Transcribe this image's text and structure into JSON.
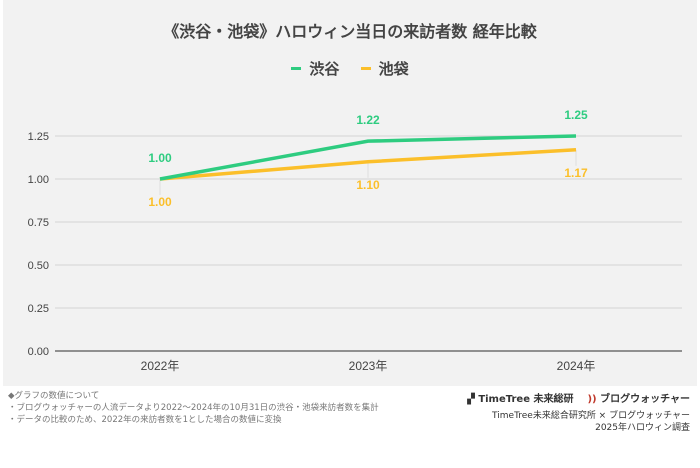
{
  "chart_data": {
    "type": "line",
    "title": "《渋谷・池袋》ハロウィン当日の来訪者数 経年比較",
    "categories": [
      "2022年",
      "2023年",
      "2024年"
    ],
    "series": [
      {
        "name": "渋谷",
        "values": [
          1.0,
          1.22,
          1.25
        ],
        "labels": [
          "1.00",
          "1.22",
          "1.25"
        ],
        "color": "#2ecc80"
      },
      {
        "name": "池袋",
        "values": [
          1.0,
          1.1,
          1.17
        ],
        "labels": [
          "1.00",
          "1.10",
          "1.17"
        ],
        "color": "#fbbf2a"
      }
    ],
    "ylim": [
      0,
      1.25
    ],
    "yticks": [
      "0.00",
      "0.25",
      "0.50",
      "0.75",
      "1.00",
      "1.25"
    ],
    "grid": true,
    "legend": "top"
  },
  "notes": [
    "◆グラフの数値について",
    "・ブログウォッチャーの人流データより2022～2024年の10月31日の渋谷・池袋来訪者数を集計",
    "・データの比較のため、2022年の来訪者数を1とした場合の数値に変換"
  ],
  "branding": {
    "logo1": "TimeTree 未来総研",
    "logo2": "ブログウォッチャー",
    "credit": "TimeTree未来総合研究所 × ブログウォッチャー",
    "survey": "2025年ハロウィン調査"
  }
}
